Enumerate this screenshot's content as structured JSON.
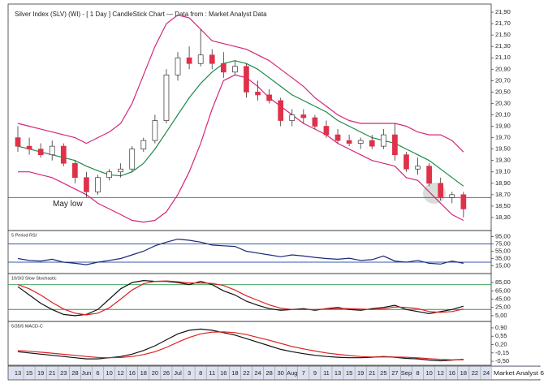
{
  "chart_data": [
    {
      "type": "candlestick",
      "title": "Silver Index (SLV) (WI) -  [ 1 Day ] CandleStick Chart — Data from : Market Analyst Data",
      "source": "Market Analyst 6",
      "categories": [
        "13",
        "15",
        "19",
        "21",
        "23",
        "28",
        "Jun",
        "6",
        "10",
        "12",
        "16",
        "18",
        "20",
        "26",
        "Jul",
        "3",
        "8",
        "11",
        "16",
        "18",
        "22",
        "24",
        "28",
        "30",
        "Aug",
        "7",
        "9",
        "11",
        "13",
        "15",
        "19",
        "21",
        "25",
        "27",
        "Sep",
        "8",
        "10",
        "12",
        "16",
        "18",
        "22",
        "24"
      ],
      "open": [
        19.7,
        19.55,
        19.5,
        19.4,
        19.55,
        19.25,
        19.0,
        18.75,
        19.0,
        19.1,
        19.15,
        19.5,
        19.65,
        20.0,
        20.8,
        21.1,
        21.0,
        21.15,
        21.0,
        20.85,
        20.95,
        20.5,
        20.45,
        20.35,
        20.0,
        20.1,
        20.05,
        19.9,
        19.75,
        19.65,
        19.6,
        19.65,
        19.55,
        19.75,
        19.4,
        19.15,
        19.2,
        18.9,
        18.65,
        18.7,
        null,
        null
      ],
      "high": [
        19.9,
        19.7,
        19.6,
        19.65,
        19.6,
        19.3,
        19.1,
        19.05,
        19.15,
        19.25,
        19.55,
        19.7,
        20.1,
        20.9,
        21.2,
        21.3,
        21.6,
        21.25,
        21.2,
        21.05,
        21.0,
        20.7,
        20.55,
        20.4,
        20.2,
        20.2,
        20.1,
        20.0,
        19.85,
        19.75,
        19.7,
        19.75,
        19.85,
        19.95,
        19.45,
        19.35,
        19.25,
        19.0,
        18.75,
        18.75,
        null,
        null
      ],
      "low": [
        19.45,
        19.4,
        19.35,
        19.3,
        19.2,
        18.9,
        18.65,
        18.7,
        18.95,
        19.0,
        19.1,
        19.45,
        19.6,
        19.95,
        20.7,
        20.9,
        20.95,
        20.9,
        20.75,
        20.8,
        20.4,
        20.35,
        20.3,
        19.9,
        19.9,
        19.95,
        19.85,
        19.7,
        19.6,
        19.55,
        19.5,
        19.5,
        19.5,
        19.3,
        19.1,
        19.05,
        18.85,
        18.6,
        18.55,
        18.3,
        null,
        null
      ],
      "close": [
        19.55,
        19.5,
        19.4,
        19.55,
        19.25,
        19.0,
        18.75,
        19.0,
        19.1,
        19.15,
        19.5,
        19.65,
        20.0,
        20.8,
        21.1,
        21.0,
        21.15,
        21.0,
        20.85,
        20.95,
        20.5,
        20.45,
        20.35,
        20.0,
        20.1,
        20.05,
        19.9,
        19.75,
        19.65,
        19.6,
        19.65,
        19.55,
        19.75,
        19.4,
        19.15,
        19.2,
        18.9,
        18.65,
        18.7,
        18.45,
        null,
        null
      ],
      "up_color": "#ffffff",
      "down_color": "#e0304a",
      "series": [
        {
          "color": "#d4267a",
          "values": [
            19.95,
            19.9,
            19.85,
            19.8,
            19.75,
            19.7,
            19.6,
            19.7,
            19.8,
            19.95,
            20.3,
            20.8,
            21.3,
            21.7,
            21.85,
            21.8,
            21.6,
            21.4,
            21.35,
            21.3,
            21.25,
            21.15,
            21.05,
            20.9,
            20.75,
            20.6,
            20.4,
            20.25,
            20.1,
            20.0,
            19.95,
            19.95,
            19.95,
            19.95,
            19.9,
            19.8,
            19.75,
            19.75,
            19.65,
            19.45,
            null,
            null
          ]
        },
        {
          "color": "#1a8a4a",
          "values": [
            19.55,
            19.5,
            19.45,
            19.4,
            19.35,
            19.3,
            19.2,
            19.12,
            19.05,
            19.03,
            19.1,
            19.25,
            19.5,
            19.8,
            20.1,
            20.4,
            20.65,
            20.85,
            21.0,
            21.05,
            21.0,
            20.9,
            20.75,
            20.6,
            20.45,
            20.35,
            20.25,
            20.15,
            20.0,
            19.9,
            19.8,
            19.7,
            19.65,
            19.6,
            19.5,
            19.4,
            19.3,
            19.15,
            19.0,
            18.85,
            null,
            null
          ]
        },
        {
          "color": "#d4267a",
          "values": [
            19.1,
            19.1,
            19.05,
            19.0,
            18.9,
            18.8,
            18.7,
            18.55,
            18.45,
            18.35,
            18.25,
            18.22,
            18.25,
            18.4,
            18.7,
            19.1,
            19.6,
            20.2,
            20.7,
            20.8,
            20.75,
            20.6,
            20.4,
            20.25,
            20.1,
            19.95,
            19.85,
            19.75,
            19.6,
            19.5,
            19.4,
            19.3,
            19.25,
            19.2,
            19.0,
            18.95,
            18.75,
            18.55,
            18.35,
            18.25,
            null,
            null
          ]
        }
      ],
      "levels": [
        {
          "value": 18.65,
          "label": "May low",
          "color": "#3a5aa8"
        }
      ],
      "ylim": [
        18.1,
        22.0
      ],
      "yticks": [
        {
          "value": 21.9,
          "label": "21,90"
        },
        {
          "value": 21.7,
          "label": "21,70"
        },
        {
          "value": 21.5,
          "label": "21,50"
        },
        {
          "value": 21.3,
          "label": "21,30"
        },
        {
          "value": 21.1,
          "label": "21,10"
        },
        {
          "value": 20.9,
          "label": "20,90"
        },
        {
          "value": 20.7,
          "label": "20,70"
        },
        {
          "value": 20.5,
          "label": "20,50"
        },
        {
          "value": 20.3,
          "label": "20,30"
        },
        {
          "value": 20.1,
          "label": "20,10"
        },
        {
          "value": 19.9,
          "label": "19,90"
        },
        {
          "value": 19.7,
          "label": "19,70"
        },
        {
          "value": 19.5,
          "label": "19,50"
        },
        {
          "value": 19.3,
          "label": "19,30"
        },
        {
          "value": 19.1,
          "label": "19,10"
        },
        {
          "value": 18.9,
          "label": "18,90"
        },
        {
          "value": 18.7,
          "label": "18,70"
        },
        {
          "value": 18.5,
          "label": "18,50"
        },
        {
          "value": 18.3,
          "label": "18,30"
        }
      ]
    },
    {
      "type": "line",
      "title": "5 Period RSI",
      "series": [
        {
          "color": "#1a2a7a",
          "values": [
            35,
            30,
            28,
            33,
            25,
            22,
            18,
            25,
            30,
            35,
            45,
            55,
            70,
            80,
            88,
            85,
            80,
            72,
            70,
            68,
            55,
            50,
            45,
            40,
            45,
            42,
            38,
            35,
            33,
            36,
            30,
            32,
            42,
            28,
            25,
            30,
            22,
            20,
            28,
            22,
            null,
            null
          ]
        }
      ],
      "levels": [
        {
          "value": 75,
          "color": "#3a5aa8"
        },
        {
          "value": 25,
          "color": "#3a5aa8"
        }
      ],
      "ylim": [
        5,
        105
      ],
      "yticks": [
        {
          "value": 95,
          "label": "95,00"
        },
        {
          "value": 75,
          "label": "75,00"
        },
        {
          "value": 55,
          "label": "55,00"
        },
        {
          "value": 35,
          "label": "35,00"
        },
        {
          "value": 15,
          "label": "15,00"
        }
      ]
    },
    {
      "type": "line",
      "title": "10/3/3 Slow Stochastic",
      "series": [
        {
          "color": "#111111",
          "values": [
            75,
            55,
            35,
            20,
            8,
            5,
            8,
            20,
            45,
            70,
            85,
            90,
            88,
            88,
            85,
            80,
            88,
            80,
            65,
            55,
            40,
            30,
            22,
            18,
            20,
            22,
            18,
            22,
            25,
            20,
            18,
            22,
            25,
            30,
            20,
            15,
            10,
            15,
            20,
            28,
            null,
            null
          ]
        },
        {
          "color": "#e02020",
          "values": [
            80,
            70,
            55,
            37,
            21,
            11,
            7,
            11,
            24,
            45,
            67,
            82,
            88,
            89,
            87,
            84,
            84,
            83,
            78,
            67,
            53,
            42,
            31,
            23,
            20,
            20,
            20,
            21,
            22,
            22,
            21,
            20,
            22,
            26,
            25,
            22,
            15,
            13,
            15,
            21,
            null,
            null
          ]
        }
      ],
      "levels": [
        {
          "value": 80,
          "color": "#2a9a4a"
        },
        {
          "value": 20,
          "color": "#2a9a4a"
        }
      ],
      "ylim": [
        -5,
        95
      ],
      "yticks": [
        {
          "value": 85,
          "label": "85,00"
        },
        {
          "value": 65,
          "label": "65,00"
        },
        {
          "value": 45,
          "label": "45,00"
        },
        {
          "value": 25,
          "label": "25,00"
        },
        {
          "value": 5,
          "label": "5,00"
        }
      ]
    },
    {
      "type": "line",
      "title": "5/35/5 MACD-C",
      "series": [
        {
          "color": "#111111",
          "values": [
            -0.1,
            -0.15,
            -0.2,
            -0.25,
            -0.3,
            -0.35,
            -0.4,
            -0.4,
            -0.35,
            -0.3,
            -0.2,
            -0.05,
            0.15,
            0.4,
            0.65,
            0.8,
            0.85,
            0.8,
            0.7,
            0.6,
            0.45,
            0.3,
            0.15,
            0.0,
            -0.1,
            -0.18,
            -0.25,
            -0.3,
            -0.33,
            -0.35,
            -0.35,
            -0.33,
            -0.3,
            -0.33,
            -0.38,
            -0.4,
            -0.45,
            -0.48,
            -0.45,
            -0.42,
            null,
            null
          ]
        },
        {
          "color": "#e02020",
          "values": [
            -0.05,
            -0.08,
            -0.12,
            -0.16,
            -0.21,
            -0.25,
            -0.3,
            -0.34,
            -0.35,
            -0.34,
            -0.3,
            -0.22,
            -0.1,
            0.08,
            0.3,
            0.5,
            0.65,
            0.72,
            0.73,
            0.7,
            0.62,
            0.5,
            0.38,
            0.25,
            0.12,
            0.02,
            -0.07,
            -0.15,
            -0.21,
            -0.26,
            -0.3,
            -0.32,
            -0.32,
            -0.32,
            -0.33,
            -0.36,
            -0.39,
            -0.42,
            -0.44,
            -0.44,
            null,
            null
          ]
        }
      ],
      "ylim": [
        -0.6,
        1.0
      ],
      "yticks": [
        {
          "value": 0.9,
          "label": "0,90"
        },
        {
          "value": 0.55,
          "label": "0,55"
        },
        {
          "value": 0.2,
          "label": "0,20"
        },
        {
          "value": -0.15,
          "label": "-0,15"
        },
        {
          "value": -0.5,
          "label": "-0,50"
        }
      ]
    }
  ]
}
